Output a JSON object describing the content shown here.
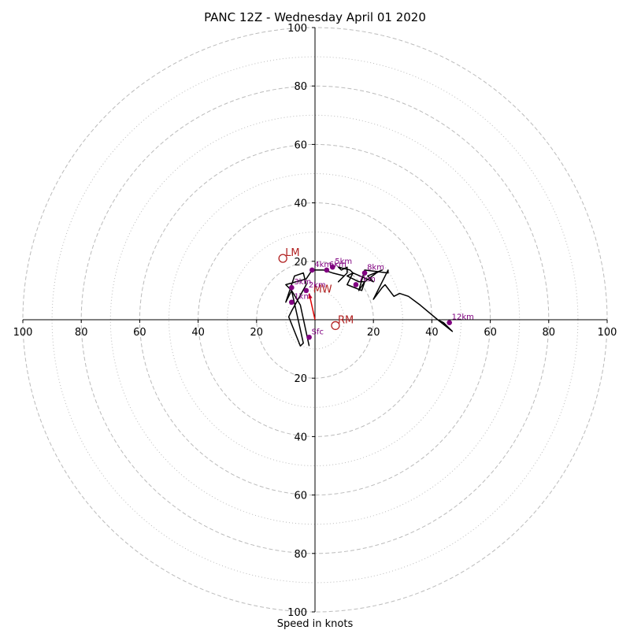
{
  "chart_data": {
    "type": "hodograph",
    "title": "PANC 12Z - Wednesday April 01 2020",
    "xlabel": "Speed in knots",
    "xlim": [
      -100,
      100
    ],
    "ylim": [
      -100,
      100
    ],
    "ring_major": [
      20,
      40,
      60,
      80,
      100
    ],
    "ring_minor": [
      10,
      30,
      50,
      70,
      90
    ],
    "ticks": [
      {
        "v": -100,
        "label": "100"
      },
      {
        "v": -80,
        "label": "80"
      },
      {
        "v": -60,
        "label": "60"
      },
      {
        "v": -40,
        "label": "40"
      },
      {
        "v": -20,
        "label": "20"
      },
      {
        "v": 20,
        "label": "20"
      },
      {
        "v": 40,
        "label": "40"
      },
      {
        "v": 60,
        "label": "60"
      },
      {
        "v": 80,
        "label": "80"
      },
      {
        "v": 100,
        "label": "100"
      }
    ],
    "trace": [
      [
        -2,
        -9
      ],
      [
        -5,
        5
      ],
      [
        -8,
        10
      ],
      [
        -10,
        6
      ],
      [
        -7,
        15
      ],
      [
        -4,
        16
      ],
      [
        -3,
        12
      ],
      [
        -8,
        3
      ],
      [
        -9,
        1
      ],
      [
        -5,
        -9
      ],
      [
        -4,
        -8
      ],
      [
        -8,
        10
      ],
      [
        -10,
        12
      ],
      [
        -3,
        14
      ],
      [
        -1,
        17
      ],
      [
        3,
        17
      ],
      [
        6,
        16
      ],
      [
        10,
        15
      ],
      [
        8,
        13
      ],
      [
        11,
        16
      ],
      [
        11,
        18
      ],
      [
        9,
        17
      ],
      [
        8,
        18
      ],
      [
        12,
        17
      ],
      [
        13,
        16
      ],
      [
        11,
        12
      ],
      [
        16,
        10
      ],
      [
        17,
        13
      ],
      [
        21,
        16
      ],
      [
        23,
        17
      ],
      [
        18,
        15
      ],
      [
        20,
        13
      ],
      [
        13,
        16
      ],
      [
        11,
        15
      ],
      [
        15,
        13
      ],
      [
        17,
        13
      ],
      [
        15,
        10
      ],
      [
        17,
        17
      ],
      [
        25,
        16
      ],
      [
        25,
        17
      ],
      [
        20,
        7
      ],
      [
        23,
        11
      ],
      [
        24,
        12
      ],
      [
        27,
        8
      ],
      [
        29,
        9
      ],
      [
        32,
        8
      ],
      [
        36,
        5
      ],
      [
        42,
        0
      ],
      [
        47,
        -4
      ],
      [
        44,
        -1
      ],
      [
        42,
        0
      ]
    ],
    "height_points": [
      {
        "label": "Sfc",
        "u": -2,
        "v": -6
      },
      {
        "label": "1km",
        "u": -8,
        "v": 6
      },
      {
        "label": "2km",
        "u": -3,
        "v": 10
      },
      {
        "label": "3km",
        "u": -8,
        "v": 11
      },
      {
        "label": "4km",
        "u": -1,
        "v": 17
      },
      {
        "label": "5km",
        "u": 6,
        "v": 18
      },
      {
        "label": "6km",
        "u": 4,
        "v": 17
      },
      {
        "label": "7km",
        "u": 14,
        "v": 12
      },
      {
        "label": "8km",
        "u": 17,
        "v": 16
      },
      {
        "label": "12km",
        "u": 46,
        "v": -1
      }
    ],
    "motion_markers": [
      {
        "label": "LM",
        "u": -11,
        "v": 21
      },
      {
        "label": "RM",
        "u": 7,
        "v": -2
      }
    ],
    "mean_wind": {
      "label": "MW",
      "u": -2,
      "v": 9
    },
    "colors": {
      "trace": "#000000",
      "height_points": "#800080",
      "motion": "#b22222",
      "mean_wind": "#dd0000",
      "grid": "#bbbbbb"
    }
  }
}
